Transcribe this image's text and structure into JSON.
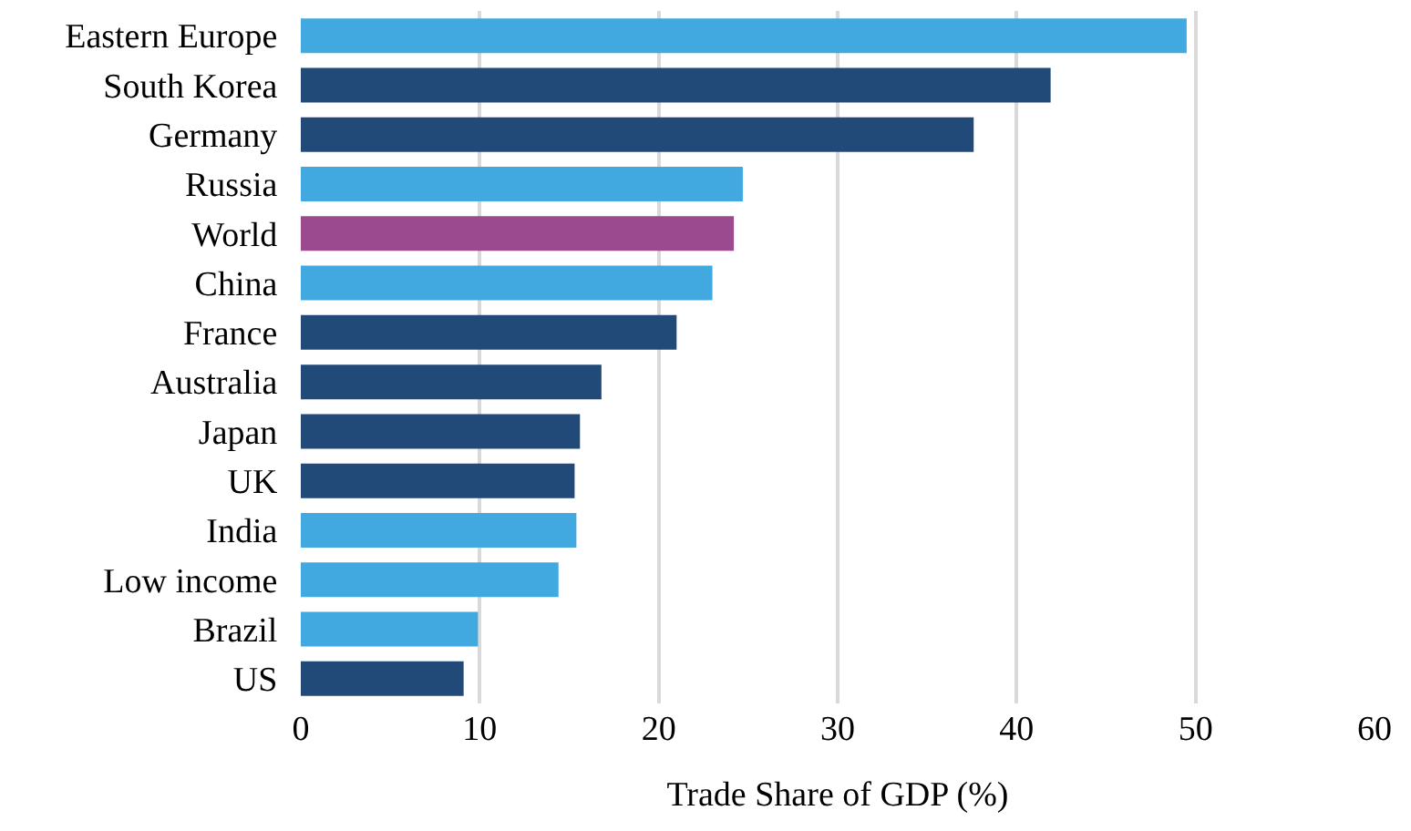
{
  "chart_data": {
    "type": "bar",
    "orientation": "horizontal",
    "xlabel": "Trade Share of GDP (%)",
    "categories": [
      "Eastern Europe",
      "South Korea",
      "Germany",
      "Russia",
      "World",
      "China",
      "France",
      "Australia",
      "Japan",
      "UK",
      "India",
      "Low income",
      "Brazil",
      "US"
    ],
    "values": [
      49.5,
      41.9,
      37.6,
      24.7,
      24.2,
      23.0,
      21.0,
      16.8,
      15.6,
      15.3,
      15.4,
      14.4,
      9.9,
      9.1
    ],
    "colors": [
      "#41a9e0",
      "#224a78",
      "#224a78",
      "#41a9e0",
      "#9b4a90",
      "#41a9e0",
      "#224a78",
      "#224a78",
      "#224a78",
      "#224a78",
      "#41a9e0",
      "#41a9e0",
      "#41a9e0",
      "#224a78"
    ],
    "xlim": [
      0,
      60
    ],
    "xticks": [
      0,
      10,
      20,
      30,
      40,
      50,
      60
    ],
    "grid": "x"
  }
}
